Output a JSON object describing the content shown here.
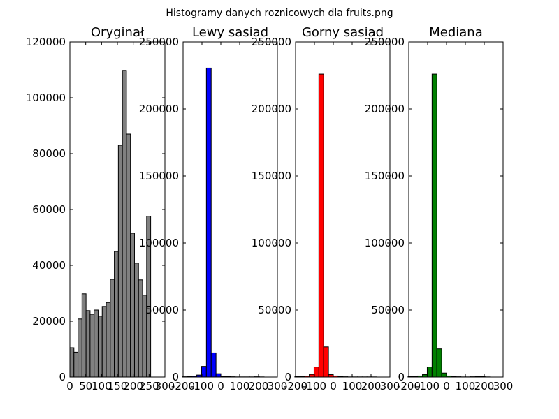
{
  "figure": {
    "suptitle": "Histogramy danych roznicowych dla fruits.png"
  },
  "chart_data": [
    {
      "type": "bar",
      "title": "Oryginał",
      "color": "#808080",
      "xlim": [
        0,
        300
      ],
      "ylim": [
        0,
        120000
      ],
      "xticks": [
        0,
        50,
        100,
        150,
        200,
        250,
        300
      ],
      "yticks": [
        0,
        20000,
        40000,
        60000,
        80000,
        100000,
        120000
      ],
      "bin_start": 0,
      "bin_width": 12.75,
      "values": [
        10500,
        8900,
        20800,
        29800,
        23800,
        22500,
        24000,
        21800,
        25300,
        26700,
        35000,
        45000,
        83000,
        109800,
        87000,
        51500,
        40800,
        34800,
        29300,
        57600
      ]
    },
    {
      "type": "bar",
      "title": "Lewy sasiad",
      "color": "#0000ff",
      "xlim": [
        -200,
        300
      ],
      "ylim": [
        0,
        250000
      ],
      "xticks": [
        -200,
        -100,
        0,
        100,
        200,
        300
      ],
      "yticks": [
        0,
        50000,
        100000,
        150000,
        200000,
        250000
      ],
      "bin_start": -255,
      "bin_width": 25.5,
      "values": [
        0,
        0,
        200,
        400,
        600,
        1500,
        8000,
        230500,
        18000,
        2500,
        500,
        300,
        200,
        100,
        100,
        100,
        100,
        200,
        100,
        0
      ]
    },
    {
      "type": "bar",
      "title": "Gorny sasiad",
      "color": "#ff0000",
      "xlim": [
        -200,
        300
      ],
      "ylim": [
        0,
        250000
      ],
      "xticks": [
        -200,
        -100,
        0,
        100,
        200,
        300
      ],
      "yticks": [
        0,
        50000,
        100000,
        150000,
        200000,
        250000
      ],
      "bin_start": -255,
      "bin_width": 25.5,
      "values": [
        0,
        0,
        400,
        400,
        700,
        2000,
        7500,
        226000,
        22500,
        1800,
        800,
        400,
        200,
        100,
        100,
        100,
        100,
        100,
        100,
        0
      ]
    },
    {
      "type": "bar",
      "title": "Mediana",
      "color": "#008000",
      "xlim": [
        -200,
        300
      ],
      "ylim": [
        0,
        250000
      ],
      "xticks": [
        -200,
        -100,
        0,
        100,
        200,
        300
      ],
      "yticks": [
        0,
        50000,
        100000,
        150000,
        200000,
        250000
      ],
      "bin_start": -255,
      "bin_width": 25.5,
      "values": [
        0,
        0,
        300,
        500,
        800,
        1900,
        7500,
        226000,
        21000,
        3000,
        800,
        400,
        200,
        100,
        100,
        200,
        300,
        500,
        100,
        0
      ]
    }
  ]
}
